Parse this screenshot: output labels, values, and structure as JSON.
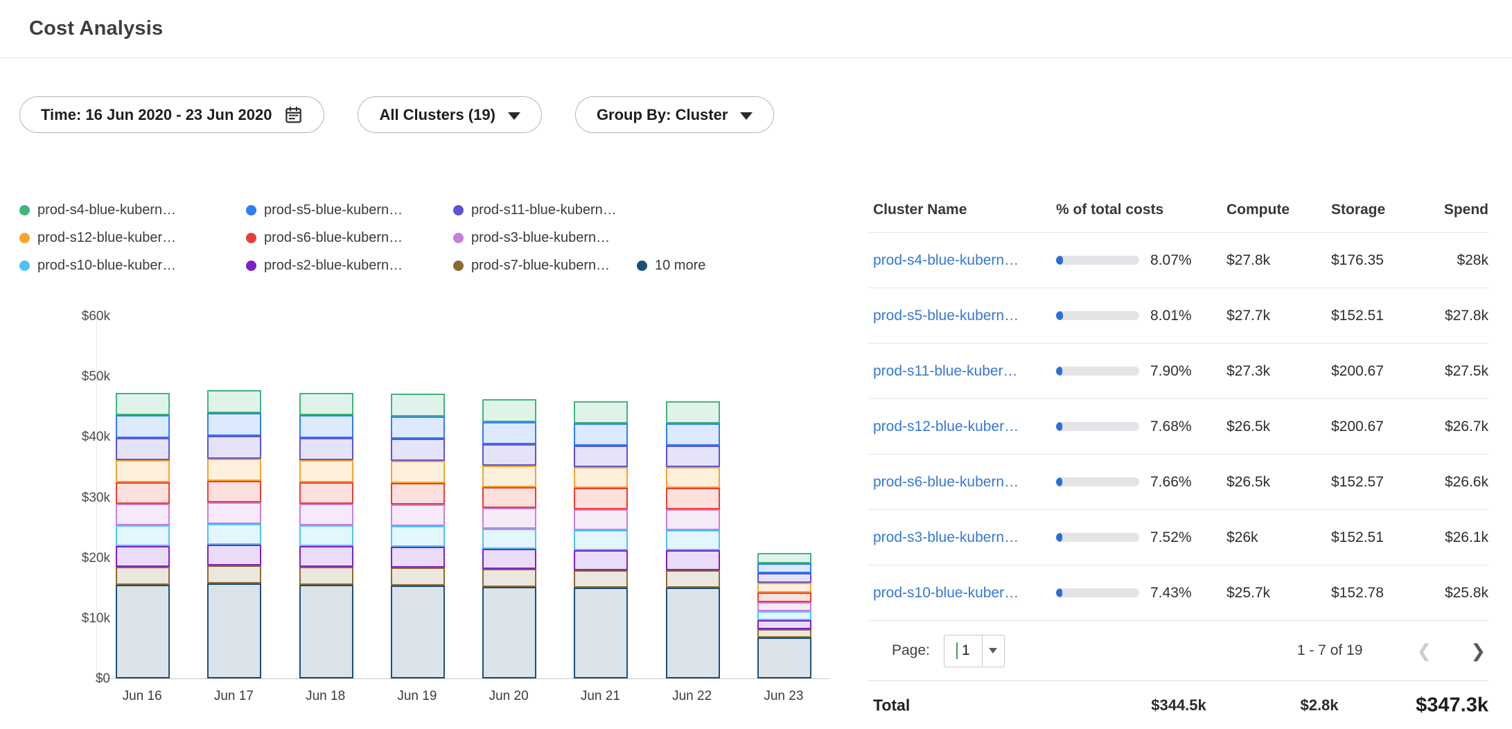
{
  "page": {
    "title": "Cost Analysis"
  },
  "filters": {
    "time": "Time: 16 Jun 2020 - 23 Jun 2020",
    "clusters": "All Clusters (19)",
    "group_by": "Group By: Cluster"
  },
  "chart_data": {
    "type": "bar",
    "stacked": true,
    "title": "",
    "xlabel": "",
    "ylabel": "",
    "value_unit": "thousand USD per day",
    "ylim": [
      0,
      60000
    ],
    "grid": false,
    "legend_position": "top",
    "categories": [
      "Jun 16",
      "Jun 17",
      "Jun 18",
      "Jun 19",
      "Jun 20",
      "Jun 21",
      "Jun 22",
      "Jun 23"
    ],
    "y_ticks": [
      "$0",
      "$10k",
      "$20k",
      "$30k",
      "$40k",
      "$50k",
      "$60k"
    ],
    "legend_order": [
      "prod-s4-blue-kubern…",
      "prod-s5-blue-kubern…",
      "prod-s11-blue-kubern…",
      "prod-s12-blue-kuber…",
      "prod-s6-blue-kubern…",
      "prod-s3-blue-kubern…",
      "prod-s10-blue-kuber…",
      "prod-s2-blue-kubern…",
      "prod-s7-blue-kubern…",
      "10 more"
    ],
    "series": [
      {
        "name": "10 more",
        "color": "#1d4f76",
        "values": [
          15.5,
          15.7,
          15.5,
          15.4,
          15.2,
          15.0,
          15.0,
          6.8
        ]
      },
      {
        "name": "prod-s7-blue-kubern…",
        "color": "#8a6a33",
        "values": [
          3.0,
          3.0,
          3.0,
          3.0,
          2.9,
          2.9,
          2.9,
          1.3
        ]
      },
      {
        "name": "prod-s2-blue-kubern…",
        "color": "#7c20c9",
        "values": [
          3.4,
          3.4,
          3.4,
          3.4,
          3.3,
          3.3,
          3.3,
          1.5
        ]
      },
      {
        "name": "prod-s10-blue-kuber…",
        "color": "#4ec3f5",
        "values": [
          3.5,
          3.5,
          3.5,
          3.5,
          3.4,
          3.4,
          3.4,
          1.5
        ]
      },
      {
        "name": "prod-s3-blue-kubern…",
        "color": "#c57fdc",
        "values": [
          3.5,
          3.55,
          3.5,
          3.5,
          3.4,
          3.4,
          3.4,
          1.5
        ]
      },
      {
        "name": "prod-s6-blue-kubern…",
        "color": "#e93e34",
        "values": [
          3.6,
          3.6,
          3.6,
          3.6,
          3.5,
          3.5,
          3.5,
          1.6
        ]
      },
      {
        "name": "prod-s12-blue-kuber…",
        "color": "#f5a42c",
        "values": [
          3.6,
          3.65,
          3.6,
          3.6,
          3.5,
          3.5,
          3.5,
          1.6
        ]
      },
      {
        "name": "prod-s11-blue-kubern…",
        "color": "#5d52d5",
        "values": [
          3.7,
          3.75,
          3.7,
          3.7,
          3.6,
          3.6,
          3.6,
          1.6
        ]
      },
      {
        "name": "prod-s5-blue-kubern…",
        "color": "#2e7df5",
        "values": [
          3.75,
          3.8,
          3.75,
          3.7,
          3.7,
          3.6,
          3.6,
          1.7
        ]
      },
      {
        "name": "prod-s4-blue-kubern…",
        "color": "#3fb57c",
        "values": [
          3.77,
          3.8,
          3.77,
          3.75,
          3.7,
          3.65,
          3.7,
          1.7
        ]
      }
    ]
  },
  "table": {
    "columns": [
      "Cluster Name",
      "% of total costs",
      "Compute",
      "Storage",
      "Spend"
    ],
    "progress_colors": {
      "fill": "#2a6fd8",
      "track": "#e4e4e8"
    },
    "rows": [
      {
        "name": "prod-s4-blue-kubern…",
        "pct": "8.07%",
        "pct_value": 8.07,
        "compute": "$27.8k",
        "storage": "$176.35",
        "spend": "$28k"
      },
      {
        "name": "prod-s5-blue-kubern…",
        "pct": "8.01%",
        "pct_value": 8.01,
        "compute": "$27.7k",
        "storage": "$152.51",
        "spend": "$27.8k"
      },
      {
        "name": "prod-s11-blue-kuber…",
        "pct": "7.90%",
        "pct_value": 7.9,
        "compute": "$27.3k",
        "storage": "$200.67",
        "spend": "$27.5k"
      },
      {
        "name": "prod-s12-blue-kuber…",
        "pct": "7.68%",
        "pct_value": 7.68,
        "compute": "$26.5k",
        "storage": "$200.67",
        "spend": "$26.7k"
      },
      {
        "name": "prod-s6-blue-kubern…",
        "pct": "7.66%",
        "pct_value": 7.66,
        "compute": "$26.5k",
        "storage": "$152.57",
        "spend": "$26.6k"
      },
      {
        "name": "prod-s3-blue-kubern…",
        "pct": "7.52%",
        "pct_value": 7.52,
        "compute": "$26k",
        "storage": "$152.51",
        "spend": "$26.1k"
      },
      {
        "name": "prod-s10-blue-kuber…",
        "pct": "7.43%",
        "pct_value": 7.43,
        "compute": "$25.7k",
        "storage": "$152.78",
        "spend": "$25.8k"
      }
    ],
    "pagination": {
      "label": "Page:",
      "page": "1",
      "range": "1 - 7 of 19"
    },
    "total": {
      "label": "Total",
      "compute": "$344.5k",
      "storage": "$2.8k",
      "spend": "$347.3k"
    }
  }
}
